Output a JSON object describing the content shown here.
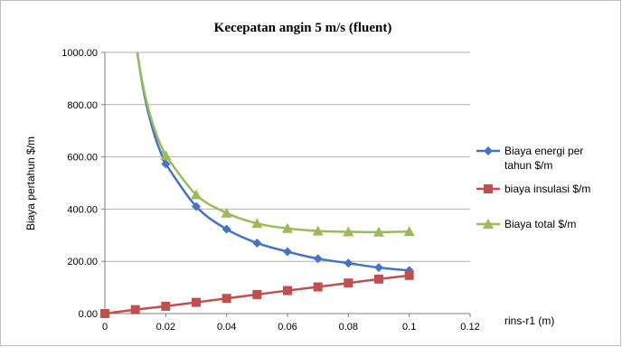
{
  "chart_data": {
    "type": "line",
    "title": "Kecepatan angin 5 m/s (fluent)",
    "xlabel": "rins-r1 (m)",
    "ylabel": "Biaya pertahun $/m",
    "xlim": [
      0,
      0.12
    ],
    "ylim": [
      0,
      1000
    ],
    "x_ticks": [
      "0",
      "0.02",
      "0.04",
      "0.06",
      "0.08",
      "0.1",
      "0.12"
    ],
    "y_ticks": [
      "0.00",
      "200.00",
      "400.00",
      "600.00",
      "800.00",
      "1000.00"
    ],
    "grid": "horizontal",
    "legend_position": "right",
    "series": [
      {
        "name_lines": [
          "Biaya energi per",
          "tahun $/m"
        ],
        "color": "#4472C4",
        "marker": "diamond",
        "x": [
          0.02,
          0.03,
          0.04,
          0.05,
          0.06,
          0.07,
          0.08,
          0.09,
          0.1
        ],
        "y": [
          573,
          410,
          323,
          270,
          237,
          210,
          193,
          176,
          165
        ]
      },
      {
        "name_lines": [
          "biaya insulasi $/m"
        ],
        "color": "#C0504D",
        "marker": "square",
        "x": [
          0,
          0.01,
          0.02,
          0.03,
          0.04,
          0.05,
          0.06,
          0.07,
          0.08,
          0.09,
          0.1
        ],
        "y": [
          0,
          15,
          28,
          43,
          58,
          73,
          88,
          102,
          117,
          132,
          146
        ]
      },
      {
        "name_lines": [
          "Biaya total  $/m"
        ],
        "color": "#9BBB59",
        "marker": "triangle",
        "x": [
          0.02,
          0.03,
          0.04,
          0.05,
          0.06,
          0.07,
          0.08,
          0.09,
          0.1
        ],
        "y": [
          605,
          455,
          385,
          345,
          326,
          316,
          313,
          312,
          314
        ]
      }
    ]
  }
}
